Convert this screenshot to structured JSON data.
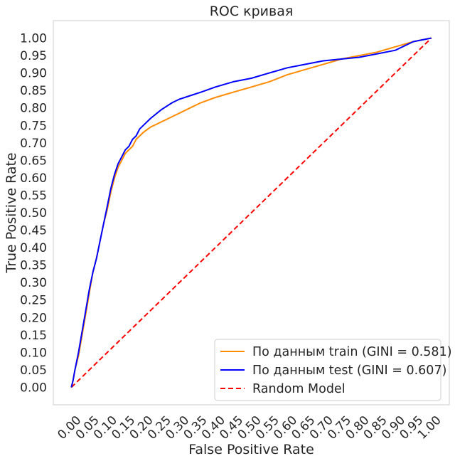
{
  "chart_data": {
    "type": "line",
    "title": "ROC кривая",
    "xlabel": "False Positive Rate",
    "ylabel": "True Positive Rate",
    "xlim": [
      -0.05,
      1.05
    ],
    "ylim": [
      -0.05,
      1.05
    ],
    "xticks": [
      "0.00",
      "0.05",
      "0.10",
      "0.15",
      "0.20",
      "0.25",
      "0.30",
      "0.35",
      "0.40",
      "0.45",
      "0.50",
      "0.55",
      "0.60",
      "0.65",
      "0.70",
      "0.75",
      "0.80",
      "0.85",
      "0.90",
      "0.95",
      "1.00"
    ],
    "yticks": [
      "0.00",
      "0.05",
      "0.10",
      "0.15",
      "0.20",
      "0.25",
      "0.30",
      "0.35",
      "0.40",
      "0.45",
      "0.50",
      "0.55",
      "0.60",
      "0.65",
      "0.70",
      "0.75",
      "0.80",
      "0.85",
      "0.90",
      "0.95",
      "1.00"
    ],
    "grid": false,
    "legend_position": "bottom-right",
    "series": [
      {
        "name": "По данным train (GINI = 0.581)",
        "color": "#ff8c00",
        "style": "solid",
        "x": [
          0.0,
          0.005,
          0.01,
          0.02,
          0.03,
          0.04,
          0.05,
          0.06,
          0.07,
          0.08,
          0.09,
          0.1,
          0.11,
          0.12,
          0.13,
          0.14,
          0.15,
          0.16,
          0.17,
          0.18,
          0.19,
          0.2,
          0.22,
          0.25,
          0.28,
          0.3,
          0.33,
          0.36,
          0.4,
          0.45,
          0.5,
          0.55,
          0.6,
          0.65,
          0.7,
          0.75,
          0.8,
          0.85,
          0.9,
          0.95,
          1.0
        ],
        "y": [
          0.0,
          0.02,
          0.05,
          0.09,
          0.15,
          0.21,
          0.27,
          0.33,
          0.37,
          0.42,
          0.47,
          0.51,
          0.56,
          0.6,
          0.63,
          0.65,
          0.67,
          0.68,
          0.69,
          0.71,
          0.72,
          0.73,
          0.745,
          0.76,
          0.775,
          0.785,
          0.8,
          0.815,
          0.83,
          0.845,
          0.86,
          0.875,
          0.895,
          0.91,
          0.925,
          0.94,
          0.95,
          0.96,
          0.975,
          0.99,
          1.0
        ]
      },
      {
        "name": "По данным test (GINI = 0.607)",
        "color": "#0000ff",
        "style": "solid",
        "x": [
          0.0,
          0.005,
          0.01,
          0.02,
          0.03,
          0.04,
          0.05,
          0.06,
          0.07,
          0.08,
          0.09,
          0.1,
          0.11,
          0.12,
          0.13,
          0.14,
          0.15,
          0.16,
          0.17,
          0.18,
          0.19,
          0.2,
          0.22,
          0.25,
          0.28,
          0.3,
          0.33,
          0.36,
          0.4,
          0.45,
          0.5,
          0.55,
          0.6,
          0.65,
          0.7,
          0.75,
          0.8,
          0.85,
          0.9,
          0.95,
          1.0
        ],
        "y": [
          0.0,
          0.02,
          0.05,
          0.1,
          0.16,
          0.22,
          0.28,
          0.33,
          0.37,
          0.42,
          0.47,
          0.52,
          0.57,
          0.61,
          0.64,
          0.66,
          0.68,
          0.69,
          0.71,
          0.72,
          0.74,
          0.75,
          0.77,
          0.795,
          0.815,
          0.825,
          0.835,
          0.845,
          0.86,
          0.875,
          0.885,
          0.9,
          0.915,
          0.925,
          0.935,
          0.94,
          0.945,
          0.955,
          0.965,
          0.99,
          1.0
        ]
      },
      {
        "name": "Random Model",
        "color": "#ff0000",
        "style": "dashed",
        "x": [
          0.0,
          1.0
        ],
        "y": [
          0.0,
          1.0
        ]
      }
    ]
  }
}
